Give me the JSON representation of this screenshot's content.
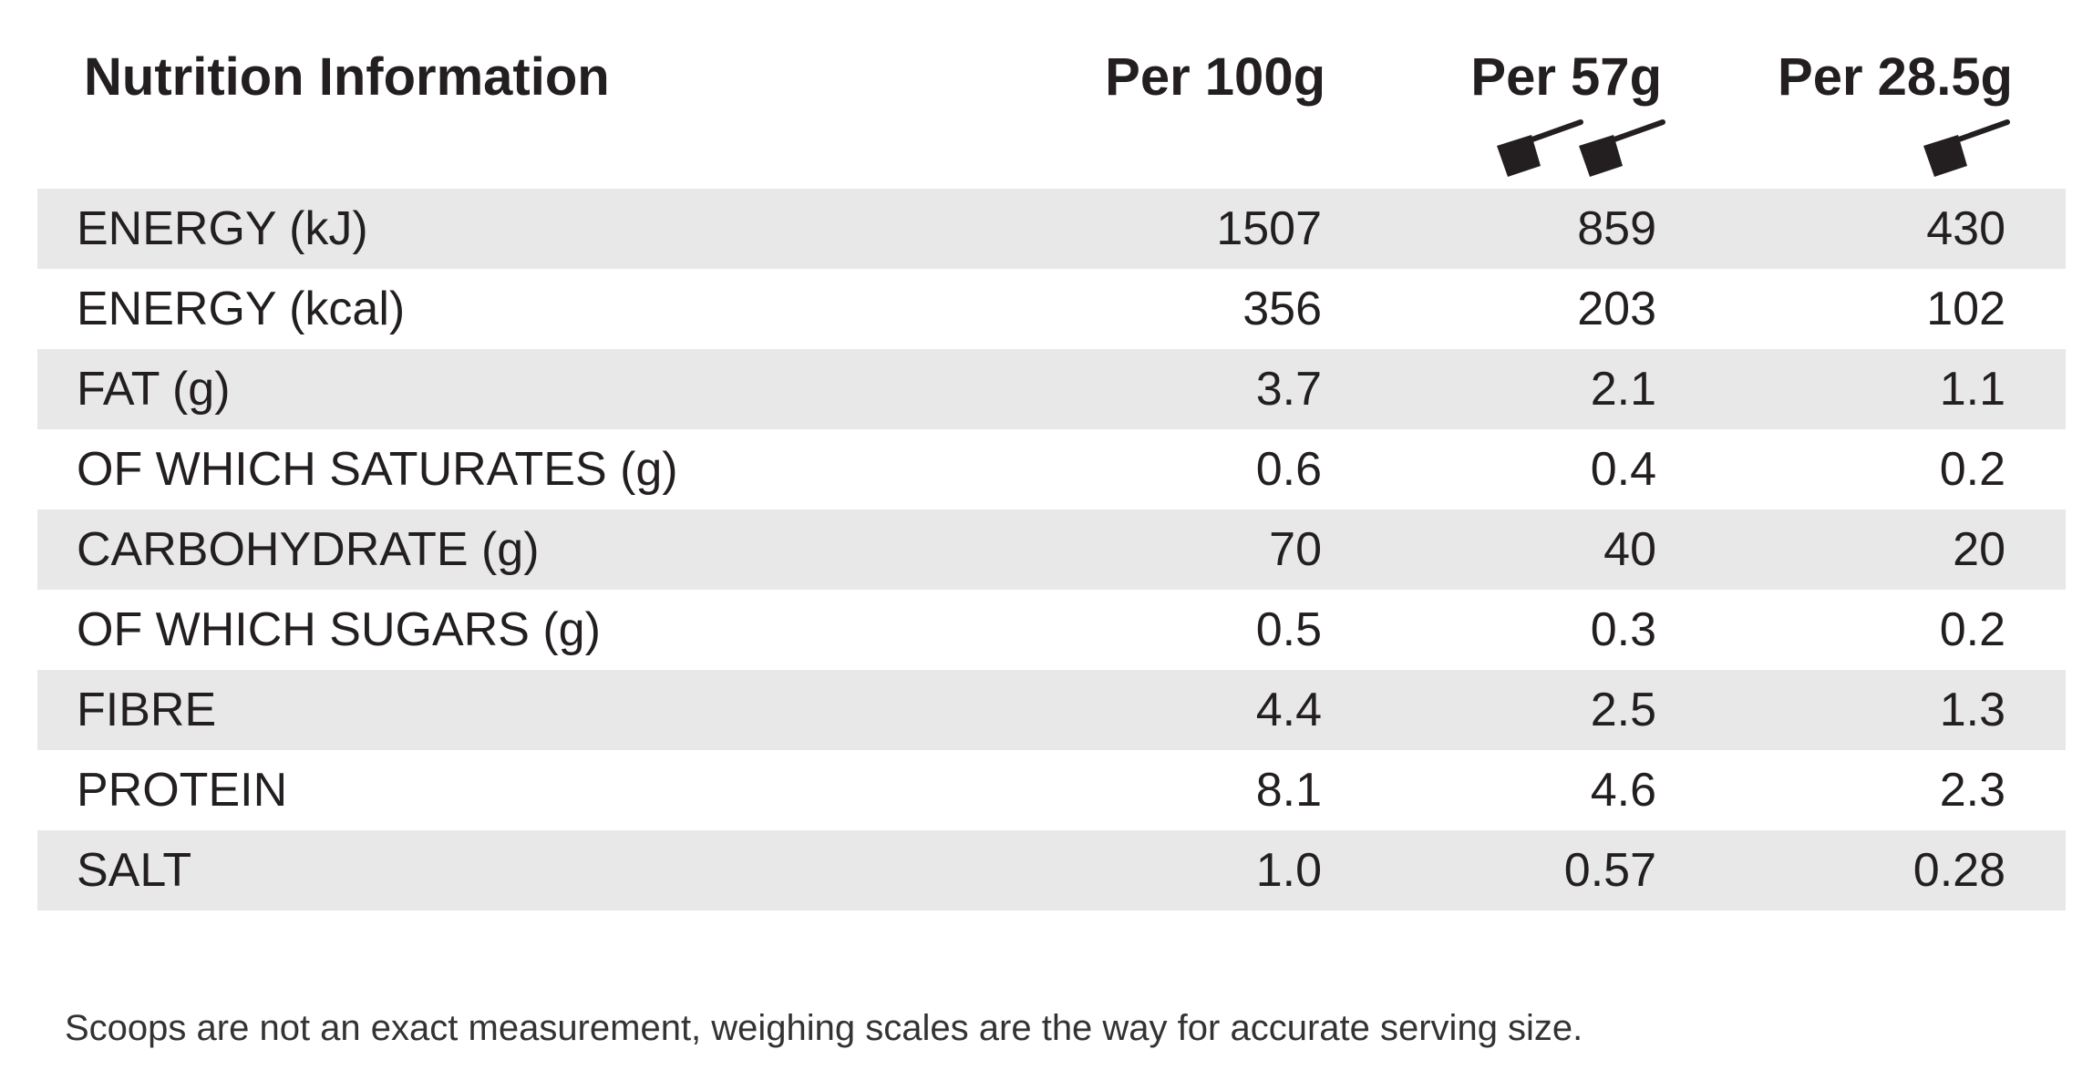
{
  "table": {
    "header": [
      "Nutrition Information",
      "Per 100g",
      "Per 57g",
      "Per 28.5g"
    ],
    "rows": [
      [
        "ENERGY (kJ)",
        "1507",
        "859",
        "430"
      ],
      [
        "ENERGY (kcal)",
        "356",
        "203",
        "102"
      ],
      [
        "FAT (g)",
        "3.7",
        "2.1",
        "1.1"
      ],
      [
        "OF WHICH SATURATES (g)",
        "0.6",
        "0.4",
        "0.2"
      ],
      [
        "CARBOHYDRATE (g)",
        "70",
        "40",
        "20"
      ],
      [
        "OF WHICH SUGARS (g)",
        "0.5",
        "0.3",
        "0.2"
      ],
      [
        "FIBRE",
        "4.4",
        "2.5",
        "1.3"
      ],
      [
        "PROTEIN",
        "8.1",
        "4.6",
        "2.3"
      ],
      [
        "SALT",
        "1.0",
        "0.57",
        "0.28"
      ]
    ]
  },
  "footnote": "Scoops are not an exact measurement, weighing scales are the way for accurate serving size."
}
